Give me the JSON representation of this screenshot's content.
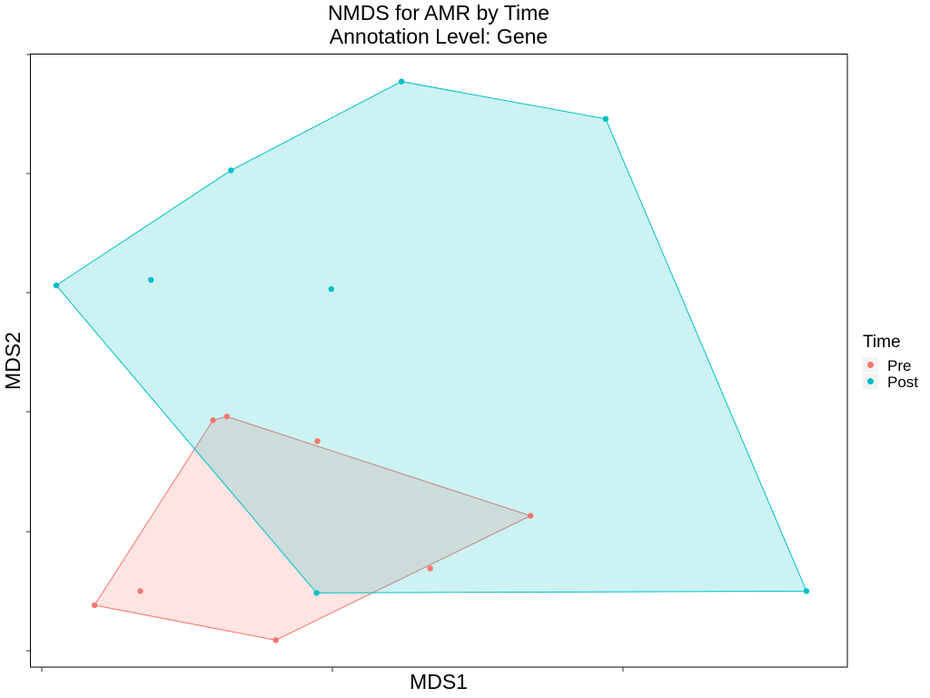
{
  "chart_data": {
    "type": "scatter",
    "title": "NMDS for AMR by Time",
    "subtitle": "Annotation Level: Gene",
    "xlabel": "MDS1",
    "ylabel": "MDS2",
    "xlim": [
      0.0,
      1.0
    ],
    "ylim": [
      0.0,
      1.0
    ],
    "x_tick_labels": [],
    "y_tick_labels": [],
    "grid": false,
    "hulls": true,
    "legend": {
      "title": "Time",
      "placement": "right",
      "entries": [
        "Pre",
        "Post"
      ]
    },
    "series": [
      {
        "name": "Pre",
        "color": "#F8766D",
        "hull": [
          [
            0.078,
            0.101
          ],
          [
            0.3,
            0.044
          ],
          [
            0.612,
            0.247
          ],
          [
            0.24,
            0.409
          ],
          [
            0.223,
            0.403
          ]
        ],
        "points": [
          {
            "x": 0.223,
            "y": 0.403
          },
          {
            "x": 0.24,
            "y": 0.409
          },
          {
            "x": 0.351,
            "y": 0.369
          },
          {
            "x": 0.612,
            "y": 0.247
          },
          {
            "x": 0.489,
            "y": 0.161
          },
          {
            "x": 0.134,
            "y": 0.124
          },
          {
            "x": 0.078,
            "y": 0.101
          },
          {
            "x": 0.3,
            "y": 0.044
          }
        ]
      },
      {
        "name": "Post",
        "color": "#00BFC4",
        "hull": [
          [
            0.031,
            0.623
          ],
          [
            0.35,
            0.121
          ],
          [
            0.95,
            0.124
          ],
          [
            0.704,
            0.895
          ],
          [
            0.454,
            0.956
          ],
          [
            0.245,
            0.811
          ]
        ],
        "points": [
          {
            "x": 0.454,
            "y": 0.956
          },
          {
            "x": 0.704,
            "y": 0.895
          },
          {
            "x": 0.245,
            "y": 0.811
          },
          {
            "x": 0.031,
            "y": 0.623
          },
          {
            "x": 0.147,
            "y": 0.632
          },
          {
            "x": 0.368,
            "y": 0.617
          },
          {
            "x": 0.35,
            "y": 0.121
          },
          {
            "x": 0.95,
            "y": 0.124
          }
        ]
      }
    ]
  }
}
